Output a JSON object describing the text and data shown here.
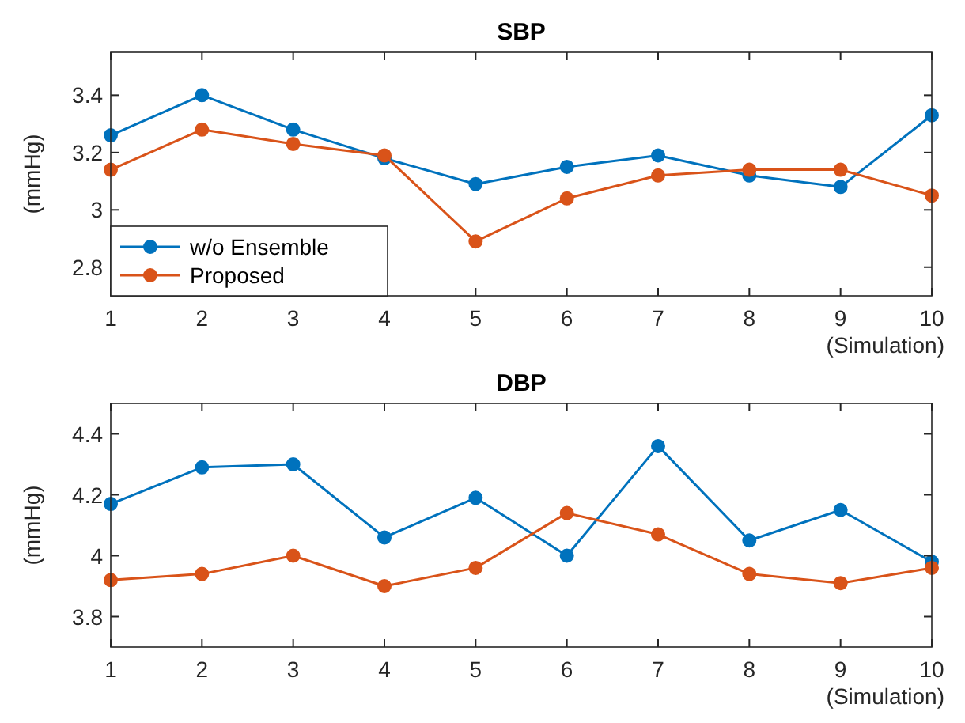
{
  "chart_data": [
    {
      "type": "line",
      "title": "SBP",
      "xlabel": "(Simulation)",
      "ylabel": "(mmHg)",
      "x": [
        1,
        2,
        3,
        4,
        5,
        6,
        7,
        8,
        9,
        10
      ],
      "xlim": [
        1,
        10
      ],
      "xticks": [
        1,
        2,
        3,
        4,
        5,
        6,
        7,
        8,
        9,
        10
      ],
      "ylim": [
        2.7,
        3.55
      ],
      "yticks": [
        2.8,
        3,
        3.2,
        3.4
      ],
      "marker": "circle",
      "legend": "bottom left",
      "grid": false,
      "series": [
        {
          "name": "w/o Ensemble",
          "color": "#0072bd",
          "values": [
            3.26,
            3.4,
            3.28,
            3.18,
            3.09,
            3.15,
            3.19,
            3.12,
            3.08,
            3.33
          ]
        },
        {
          "name": "Proposed",
          "color": "#d95319",
          "values": [
            3.14,
            3.28,
            3.23,
            3.19,
            2.89,
            3.04,
            3.12,
            3.14,
            3.14,
            3.05
          ]
        }
      ]
    },
    {
      "type": "line",
      "title": "DBP",
      "xlabel": "(Simulation)",
      "ylabel": "(mmHg)",
      "x": [
        1,
        2,
        3,
        4,
        5,
        6,
        7,
        8,
        9,
        10
      ],
      "xlim": [
        1,
        10
      ],
      "xticks": [
        1,
        2,
        3,
        4,
        5,
        6,
        7,
        8,
        9,
        10
      ],
      "ylim": [
        3.7,
        4.5
      ],
      "yticks": [
        3.8,
        4,
        4.2,
        4.4
      ],
      "marker": "circle",
      "legend": false,
      "grid": false,
      "series": [
        {
          "color": "#0072bd",
          "values": [
            4.17,
            4.29,
            4.3,
            4.06,
            4.19,
            4.0,
            4.36,
            4.05,
            4.15,
            3.98
          ]
        },
        {
          "color": "#d95319",
          "values": [
            3.92,
            3.94,
            4.0,
            3.9,
            3.96,
            4.14,
            4.07,
            3.94,
            3.91,
            3.96
          ]
        }
      ]
    }
  ]
}
